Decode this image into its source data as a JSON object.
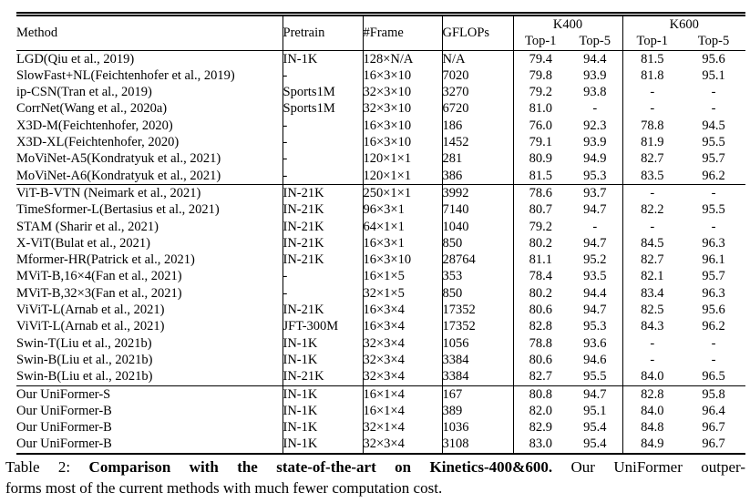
{
  "table": {
    "header": {
      "method": "Method",
      "pretrain": "Pretrain",
      "frame": "#Frame",
      "gflops": "GFLOPs",
      "k400": "K400",
      "k600": "K600",
      "top1": "Top-1",
      "top5": "Top-5"
    },
    "groups": [
      {
        "name": "cnn-methods",
        "rows": [
          {
            "method": "LGD(Qiu et al., 2019)",
            "pretrain": "IN-1K",
            "frame": "128×N/A",
            "gflops": "N/A",
            "k400_top1": "79.4",
            "k400_top5": "94.4",
            "k600_top1": "81.5",
            "k600_top5": "95.6"
          },
          {
            "method": "SlowFast+NL(Feichtenhofer et al., 2019)",
            "pretrain": "-",
            "frame": "16×3×10",
            "gflops": "7020",
            "k400_top1": "79.8",
            "k400_top5": "93.9",
            "k600_top1": "81.8",
            "k600_top5": "95.1"
          },
          {
            "method": "ip-CSN(Tran et al., 2019)",
            "pretrain": "Sports1M",
            "frame": "32×3×10",
            "gflops": "3270",
            "k400_top1": "79.2",
            "k400_top5": "93.8",
            "k600_top1": "-",
            "k600_top5": "-"
          },
          {
            "method": "CorrNet(Wang et al., 2020a)",
            "pretrain": "Sports1M",
            "frame": "32×3×10",
            "gflops": "6720",
            "k400_top1": "81.0",
            "k400_top5": "-",
            "k600_top1": "-",
            "k600_top5": "-"
          },
          {
            "method": "X3D-M(Feichtenhofer, 2020)",
            "pretrain": "-",
            "frame": "16×3×10",
            "gflops": "186",
            "k400_top1": "76.0",
            "k400_top5": "92.3",
            "k600_top1": "78.8",
            "k600_top5": "94.5"
          },
          {
            "method": "X3D-XL(Feichtenhofer, 2020)",
            "pretrain": "-",
            "frame": "16×3×10",
            "gflops": "1452",
            "k400_top1": "79.1",
            "k400_top5": "93.9",
            "k600_top1": "81.9",
            "k600_top5": "95.5"
          },
          {
            "method": "MoViNet-A5(Kondratyuk et al., 2021)",
            "pretrain": "-",
            "frame": "120×1×1",
            "gflops": "281",
            "k400_top1": "80.9",
            "k400_top5": "94.9",
            "k600_top1": "82.7",
            "k600_top5": "95.7"
          },
          {
            "method": "MoViNet-A6(Kondratyuk et al., 2021)",
            "pretrain": "-",
            "frame": "120×1×1",
            "gflops": "386",
            "k400_top1": "81.5",
            "k400_top5": "95.3",
            "k600_top1": "83.5",
            "k600_top5": "96.2"
          }
        ]
      },
      {
        "name": "transformer-methods",
        "rows": [
          {
            "method": "ViT-B-VTN (Neimark et al., 2021)",
            "pretrain": "IN-21K",
            "frame": "250×1×1",
            "gflops": "3992",
            "k400_top1": "78.6",
            "k400_top5": "93.7",
            "k600_top1": "-",
            "k600_top5": "-"
          },
          {
            "method": "TimeSformer-L(Bertasius et al., 2021)",
            "pretrain": "IN-21K",
            "frame": "96×3×1",
            "gflops": "7140",
            "k400_top1": "80.7",
            "k400_top5": "94.7",
            "k600_top1": "82.2",
            "k600_top5": "95.5"
          },
          {
            "method": "STAM (Sharir et al., 2021)",
            "pretrain": "IN-21K",
            "frame": "64×1×1",
            "gflops": "1040",
            "k400_top1": "79.2",
            "k400_top5": "-",
            "k600_top1": "-",
            "k600_top5": "-"
          },
          {
            "method": "X-ViT(Bulat et al., 2021)",
            "pretrain": "IN-21K",
            "frame": "16×3×1",
            "gflops": "850",
            "k400_top1": "80.2",
            "k400_top5": "94.7",
            "k600_top1": "84.5",
            "k600_top5": "96.3"
          },
          {
            "method": "Mformer-HR(Patrick et al., 2021)",
            "pretrain": "IN-21K",
            "frame": "16×3×10",
            "gflops": "28764",
            "k400_top1": "81.1",
            "k400_top5": "95.2",
            "k600_top1": "82.7",
            "k600_top5": "96.1"
          },
          {
            "method": "MViT-B,16×4(Fan et al., 2021)",
            "pretrain": "-",
            "frame": "16×1×5",
            "gflops": "353",
            "k400_top1": "78.4",
            "k400_top5": "93.5",
            "k600_top1": "82.1",
            "k600_top5": "95.7"
          },
          {
            "method": "MViT-B,32×3(Fan et al., 2021)",
            "pretrain": "-",
            "frame": "32×1×5",
            "gflops": "850",
            "k400_top1": "80.2",
            "k400_top5": "94.4",
            "k600_top1": "83.4",
            "k600_top5": "96.3"
          },
          {
            "method": "ViViT-L(Arnab et al., 2021)",
            "pretrain": "IN-21K",
            "frame": "16×3×4",
            "gflops": "17352",
            "k400_top1": "80.6",
            "k400_top5": "94.7",
            "k600_top1": "82.5",
            "k600_top5": "95.6"
          },
          {
            "method": "ViViT-L(Arnab et al., 2021)",
            "pretrain": "JFT-300M",
            "frame": "16×3×4",
            "gflops": "17352",
            "k400_top1": "82.8",
            "k400_top5": "95.3",
            "k600_top1": "84.3",
            "k600_top5": "96.2"
          },
          {
            "method": "Swin-T(Liu et al., 2021b)",
            "pretrain": "IN-1K",
            "frame": "32×3×4",
            "gflops": "1056",
            "k400_top1": "78.8",
            "k400_top5": "93.6",
            "k600_top1": "-",
            "k600_top5": "-"
          },
          {
            "method": "Swin-B(Liu et al., 2021b)",
            "pretrain": "IN-1K",
            "frame": "32×3×4",
            "gflops": "3384",
            "k400_top1": "80.6",
            "k400_top5": "94.6",
            "k600_top1": "-",
            "k600_top5": "-"
          },
          {
            "method": "Swin-B(Liu et al., 2021b)",
            "pretrain": "IN-21K",
            "frame": "32×3×4",
            "gflops": "3384",
            "k400_top1": "82.7",
            "k400_top5": "95.5",
            "k600_top1": "84.0",
            "k600_top5": "96.5"
          }
        ]
      },
      {
        "name": "our-methods",
        "rows": [
          {
            "method": "Our UniFormer-S",
            "pretrain": "IN-1K",
            "frame": "16×1×4",
            "gflops": "167",
            "k400_top1": "80.8",
            "k400_top5": "94.7",
            "k600_top1": "82.8",
            "k600_top5": "95.8"
          },
          {
            "method": "Our UniFormer-B",
            "pretrain": "IN-1K",
            "frame": "16×1×4",
            "gflops": "389",
            "k400_top1": "82.0",
            "k400_top5": "95.1",
            "k600_top1": "84.0",
            "k600_top5": "96.4"
          },
          {
            "method": "Our UniFormer-B",
            "pretrain": "IN-1K",
            "frame": "32×1×4",
            "gflops": "1036",
            "k400_top1": "82.9",
            "k400_top5": "95.4",
            "k600_top1": "84.8",
            "k600_top5": "96.7"
          },
          {
            "method": "Our UniFormer-B",
            "pretrain": "IN-1K",
            "frame": "32×3×4",
            "gflops": "3108",
            "k400_top1": "83.0",
            "k400_top5": "95.4",
            "k600_top1": "84.9",
            "k600_top5": "96.7",
            "bold": [
              "k400_top1",
              "k600_top1",
              "k600_top5"
            ]
          }
        ]
      }
    ]
  },
  "caption": {
    "label": "Table 2:",
    "title": "Comparison with the state-of-the-art on Kinetics-400&600.",
    "line1_rest": "Our UniFormer outper-",
    "line2": "forms most of the current methods with much fewer computation cost."
  }
}
